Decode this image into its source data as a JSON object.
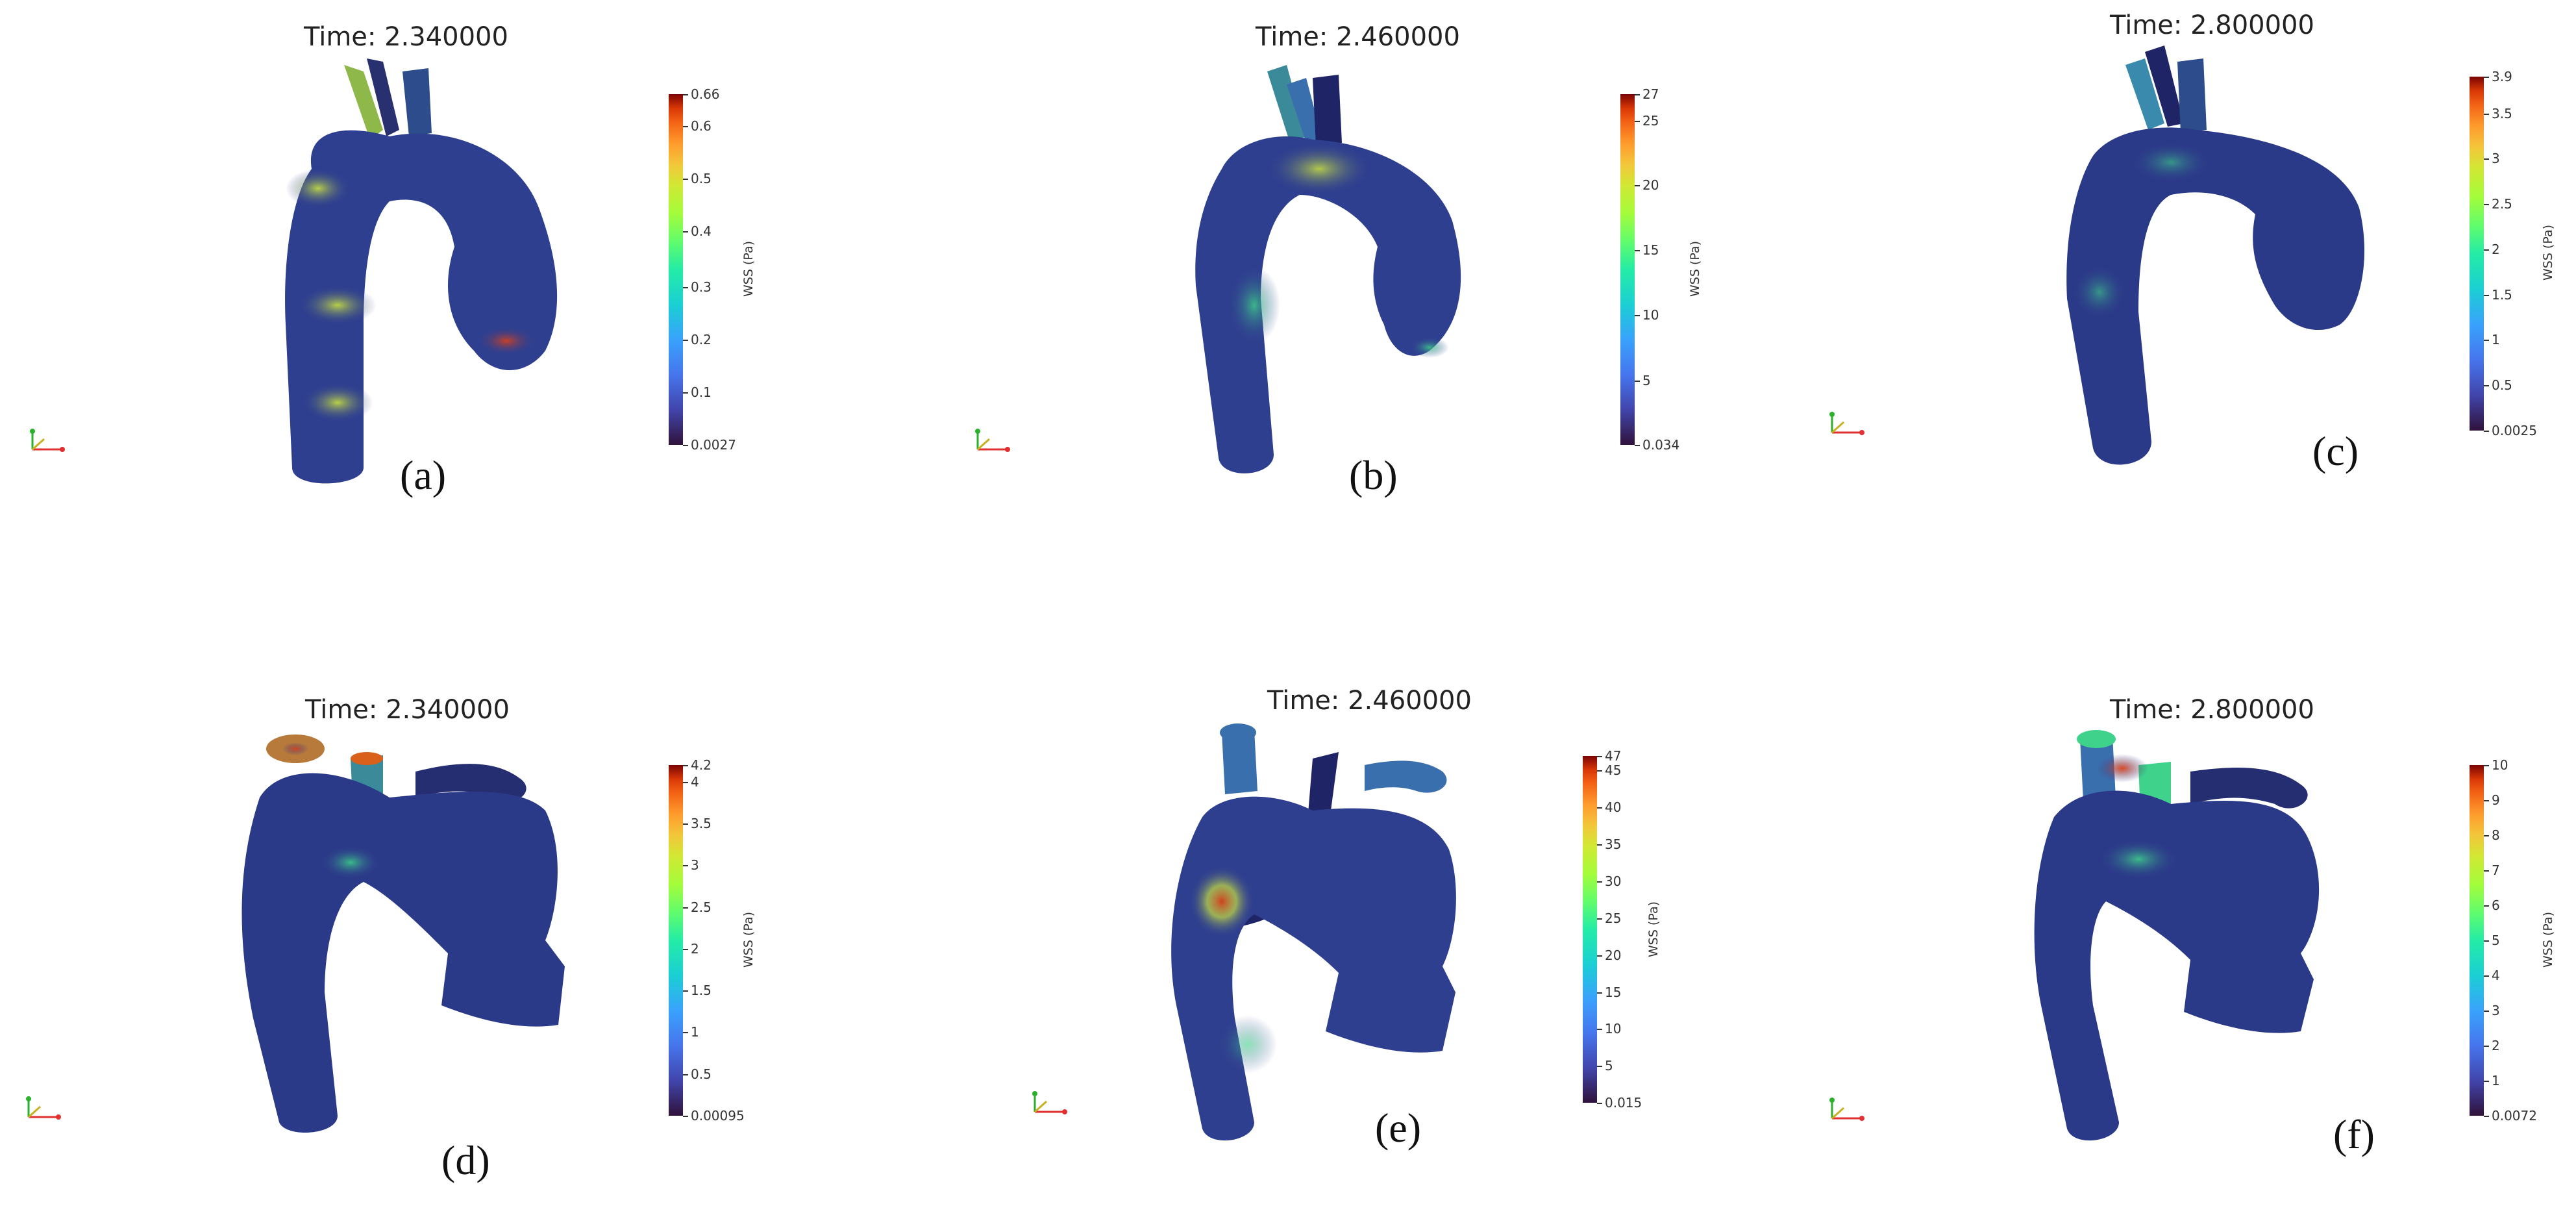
{
  "figure": {
    "panels": [
      {
        "id": "a",
        "time_label": "Time: 2.340000",
        "panel_label": "(a)",
        "colorbar": {
          "title": "WSS (Pa)",
          "min_label": "0.0027",
          "max_label": "0.66",
          "ticks": [
            "0.1",
            "0.2",
            "0.3",
            "0.4",
            "0.5",
            "0.6"
          ]
        }
      },
      {
        "id": "b",
        "time_label": "Time: 2.460000",
        "panel_label": "(b)",
        "colorbar": {
          "title": "WSS (Pa)",
          "min_label": "0.034",
          "max_label": "27",
          "ticks": [
            "5",
            "10",
            "15",
            "20",
            "25"
          ]
        }
      },
      {
        "id": "c",
        "time_label": "Time: 2.800000",
        "panel_label": "(c)",
        "colorbar": {
          "title": "WSS (Pa)",
          "min_label": "0.0025",
          "max_label": "3.9",
          "ticks": [
            "0.5",
            "1",
            "1.5",
            "2",
            "2.5",
            "3",
            "3.5"
          ]
        }
      },
      {
        "id": "d",
        "time_label": "Time: 2.340000",
        "panel_label": "(d)",
        "colorbar": {
          "title": "WSS (Pa)",
          "min_label": "0.00095",
          "max_label": "4.2",
          "ticks": [
            "0.5",
            "1",
            "1.5",
            "2",
            "2.5",
            "3",
            "3.5",
            "4"
          ]
        }
      },
      {
        "id": "e",
        "time_label": "Time: 2.460000",
        "panel_label": "(e)",
        "colorbar": {
          "title": "WSS (Pa)",
          "min_label": "0.015",
          "max_label": "47",
          "ticks": [
            "5",
            "10",
            "15",
            "20",
            "25",
            "30",
            "35",
            "40",
            "45"
          ]
        }
      },
      {
        "id": "f",
        "time_label": "Time: 2.800000",
        "panel_label": "(f)",
        "colorbar": {
          "title": "WSS (Pa)",
          "min_label": "0.0072",
          "max_label": "10",
          "ticks": [
            "1",
            "2",
            "3",
            "4",
            "5",
            "6",
            "7",
            "8",
            "9"
          ]
        }
      }
    ],
    "colors": {
      "vessel_base": "#2f3f8f",
      "vessel_dark": "#1e2466",
      "hotspot_green": "#3fd28a",
      "hotspot_yellow": "#c8e040",
      "hotspot_red": "#d8401a"
    },
    "icons": [
      "orientation-axes-icon"
    ]
  }
}
